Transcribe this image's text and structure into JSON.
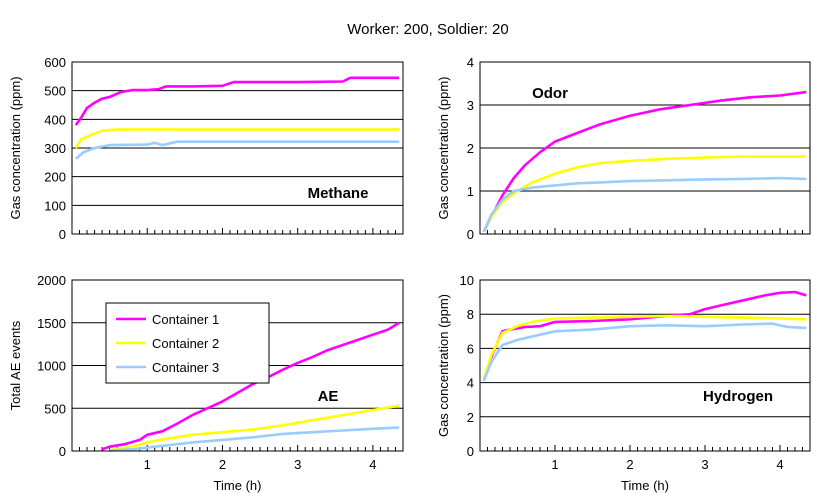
{
  "figure": {
    "title": "Worker: 200, Soldier: 20",
    "colors": {
      "Container 1": "#ff00ff",
      "Container 2": "#ffff00",
      "Container 3": "#99ccff"
    }
  },
  "chart_data": [
    {
      "type": "line",
      "annotation": "Methane",
      "xlabel": "",
      "ylabel": "Gas concentration (ppm)",
      "xlim": [
        0,
        4.4
      ],
      "ylim": [
        0,
        600
      ],
      "yticks": [
        0,
        100,
        200,
        300,
        400,
        500,
        600
      ],
      "xticks": [],
      "grid": true,
      "series": [
        {
          "name": "Container 1",
          "color": "#ff00ff",
          "points": [
            [
              0.05,
              380
            ],
            [
              0.12,
              405
            ],
            [
              0.2,
              440
            ],
            [
              0.3,
              458
            ],
            [
              0.4,
              472
            ],
            [
              0.5,
              478
            ],
            [
              0.65,
              495
            ],
            [
              0.8,
              502
            ],
            [
              1.0,
              502
            ],
            [
              1.15,
              505
            ],
            [
              1.25,
              515
            ],
            [
              1.6,
              515
            ],
            [
              2.0,
              517
            ],
            [
              2.15,
              530
            ],
            [
              2.6,
              530
            ],
            [
              3.0,
              530
            ],
            [
              3.6,
              532
            ],
            [
              3.7,
              545
            ],
            [
              4.35,
              545
            ]
          ]
        },
        {
          "name": "Container 2",
          "color": "#ffff00",
          "points": [
            [
              0.05,
              300
            ],
            [
              0.12,
              330
            ],
            [
              0.25,
              345
            ],
            [
              0.4,
              360
            ],
            [
              0.6,
              365
            ],
            [
              1.0,
              365
            ],
            [
              2.0,
              365
            ],
            [
              3.0,
              365
            ],
            [
              4.35,
              365
            ]
          ]
        },
        {
          "name": "Container 3",
          "color": "#99ccff",
          "points": [
            [
              0.05,
              262
            ],
            [
              0.15,
              285
            ],
            [
              0.3,
              300
            ],
            [
              0.5,
              310
            ],
            [
              1.0,
              312
            ],
            [
              1.1,
              318
            ],
            [
              1.2,
              310
            ],
            [
              1.4,
              322
            ],
            [
              2.0,
              322
            ],
            [
              3.0,
              322
            ],
            [
              4.35,
              322
            ]
          ]
        }
      ]
    },
    {
      "type": "line",
      "annotation": "Odor",
      "xlabel": "",
      "ylabel": "Gas concentration (ppm)",
      "xlim": [
        0,
        4.4
      ],
      "ylim": [
        0,
        4
      ],
      "yticks": [
        0,
        1,
        2,
        3,
        4
      ],
      "xticks": [],
      "grid": true,
      "series": [
        {
          "name": "Container 1",
          "color": "#ff00ff",
          "points": [
            [
              0.05,
              0.05
            ],
            [
              0.15,
              0.4
            ],
            [
              0.3,
              0.9
            ],
            [
              0.45,
              1.3
            ],
            [
              0.6,
              1.6
            ],
            [
              0.8,
              1.9
            ],
            [
              1.0,
              2.15
            ],
            [
              1.3,
              2.35
            ],
            [
              1.6,
              2.55
            ],
            [
              2.0,
              2.75
            ],
            [
              2.4,
              2.9
            ],
            [
              2.8,
              3.0
            ],
            [
              3.2,
              3.1
            ],
            [
              3.6,
              3.18
            ],
            [
              4.0,
              3.22
            ],
            [
              4.35,
              3.3
            ]
          ]
        },
        {
          "name": "Container 2",
          "color": "#ffff00",
          "points": [
            [
              0.05,
              0.05
            ],
            [
              0.15,
              0.4
            ],
            [
              0.3,
              0.75
            ],
            [
              0.5,
              1.0
            ],
            [
              0.7,
              1.2
            ],
            [
              1.0,
              1.4
            ],
            [
              1.3,
              1.55
            ],
            [
              1.6,
              1.65
            ],
            [
              2.0,
              1.7
            ],
            [
              2.5,
              1.75
            ],
            [
              3.0,
              1.78
            ],
            [
              3.5,
              1.8
            ],
            [
              4.35,
              1.8
            ]
          ]
        },
        {
          "name": "Container 3",
          "color": "#99ccff",
          "points": [
            [
              0.05,
              0.05
            ],
            [
              0.15,
              0.45
            ],
            [
              0.3,
              0.8
            ],
            [
              0.45,
              1.0
            ],
            [
              0.7,
              1.08
            ],
            [
              1.0,
              1.13
            ],
            [
              1.3,
              1.18
            ],
            [
              1.6,
              1.2
            ],
            [
              2.0,
              1.23
            ],
            [
              2.5,
              1.25
            ],
            [
              3.0,
              1.27
            ],
            [
              3.5,
              1.28
            ],
            [
              4.0,
              1.3
            ],
            [
              4.35,
              1.28
            ]
          ]
        }
      ]
    },
    {
      "type": "line",
      "annotation": "AE",
      "xlabel": "Time (h)",
      "ylabel": "Total AE events",
      "xlim": [
        0,
        4.4
      ],
      "ylim": [
        0,
        2000
      ],
      "yticks": [
        0,
        500,
        1000,
        1500,
        2000
      ],
      "xticks": [
        1,
        2,
        3,
        4
      ],
      "grid": true,
      "series": [
        {
          "name": "Container 1",
          "color": "#ff00ff",
          "points": [
            [
              0.4,
              20
            ],
            [
              0.5,
              50
            ],
            [
              0.7,
              80
            ],
            [
              0.9,
              130
            ],
            [
              1.0,
              190
            ],
            [
              1.2,
              230
            ],
            [
              1.4,
              320
            ],
            [
              1.6,
              420
            ],
            [
              1.8,
              500
            ],
            [
              2.0,
              580
            ],
            [
              2.2,
              680
            ],
            [
              2.4,
              780
            ],
            [
              2.6,
              860
            ],
            [
              2.8,
              950
            ],
            [
              3.0,
              1030
            ],
            [
              3.2,
              1100
            ],
            [
              3.4,
              1180
            ],
            [
              3.6,
              1240
            ],
            [
              3.8,
              1300
            ],
            [
              4.0,
              1360
            ],
            [
              4.2,
              1420
            ],
            [
              4.35,
              1500
            ]
          ]
        },
        {
          "name": "Container 2",
          "color": "#ffff00",
          "points": [
            [
              0.5,
              10
            ],
            [
              0.8,
              50
            ],
            [
              1.0,
              100
            ],
            [
              1.3,
              150
            ],
            [
              1.6,
              190
            ],
            [
              2.0,
              220
            ],
            [
              2.4,
              250
            ],
            [
              2.8,
              300
            ],
            [
              3.2,
              360
            ],
            [
              3.6,
              420
            ],
            [
              4.0,
              480
            ],
            [
              4.35,
              530
            ]
          ]
        },
        {
          "name": "Container 3",
          "color": "#99ccff",
          "points": [
            [
              0.5,
              5
            ],
            [
              0.8,
              20
            ],
            [
              1.0,
              40
            ],
            [
              1.3,
              70
            ],
            [
              1.6,
              100
            ],
            [
              2.0,
              130
            ],
            [
              2.4,
              160
            ],
            [
              2.8,
              200
            ],
            [
              3.2,
              220
            ],
            [
              3.6,
              240
            ],
            [
              4.0,
              260
            ],
            [
              4.35,
              275
            ]
          ]
        }
      ],
      "legend": {
        "position": "top-left",
        "entries": [
          "Container 1",
          "Container 2",
          "Container 3"
        ]
      }
    },
    {
      "type": "line",
      "annotation": "Hydrogen",
      "xlabel": "Time (h)",
      "ylabel": "Gas concentration (ppm)",
      "xlim": [
        0,
        4.4
      ],
      "ylim": [
        0,
        10
      ],
      "yticks": [
        0,
        2,
        4,
        6,
        8,
        10
      ],
      "xticks": [
        1,
        2,
        3,
        4
      ],
      "grid": true,
      "series": [
        {
          "name": "Container 1",
          "color": "#ff00ff",
          "points": [
            [
              0.05,
              4.2
            ],
            [
              0.15,
              5.5
            ],
            [
              0.3,
              7.0
            ],
            [
              0.4,
              7.1
            ],
            [
              0.6,
              7.25
            ],
            [
              0.8,
              7.3
            ],
            [
              1.0,
              7.55
            ],
            [
              1.5,
              7.6
            ],
            [
              2.0,
              7.7
            ],
            [
              2.5,
              7.9
            ],
            [
              2.8,
              8.0
            ],
            [
              3.0,
              8.3
            ],
            [
              3.2,
              8.5
            ],
            [
              3.4,
              8.7
            ],
            [
              3.6,
              8.9
            ],
            [
              3.8,
              9.1
            ],
            [
              4.0,
              9.25
            ],
            [
              4.2,
              9.3
            ],
            [
              4.35,
              9.1
            ]
          ]
        },
        {
          "name": "Container 2",
          "color": "#ffff00",
          "points": [
            [
              0.05,
              4.2
            ],
            [
              0.15,
              5.6
            ],
            [
              0.3,
              6.9
            ],
            [
              0.5,
              7.3
            ],
            [
              0.7,
              7.55
            ],
            [
              1.0,
              7.75
            ],
            [
              1.5,
              7.8
            ],
            [
              2.0,
              7.85
            ],
            [
              2.5,
              7.9
            ],
            [
              3.0,
              7.85
            ],
            [
              3.5,
              7.8
            ],
            [
              4.0,
              7.75
            ],
            [
              4.35,
              7.7
            ]
          ]
        },
        {
          "name": "Container 3",
          "color": "#99ccff",
          "points": [
            [
              0.05,
              4.1
            ],
            [
              0.15,
              5.2
            ],
            [
              0.3,
              6.2
            ],
            [
              0.5,
              6.5
            ],
            [
              0.8,
              6.8
            ],
            [
              1.0,
              7.0
            ],
            [
              1.5,
              7.1
            ],
            [
              2.0,
              7.3
            ],
            [
              2.5,
              7.35
            ],
            [
              3.0,
              7.3
            ],
            [
              3.5,
              7.4
            ],
            [
              3.9,
              7.45
            ],
            [
              4.1,
              7.25
            ],
            [
              4.35,
              7.2
            ]
          ]
        }
      ]
    }
  ]
}
